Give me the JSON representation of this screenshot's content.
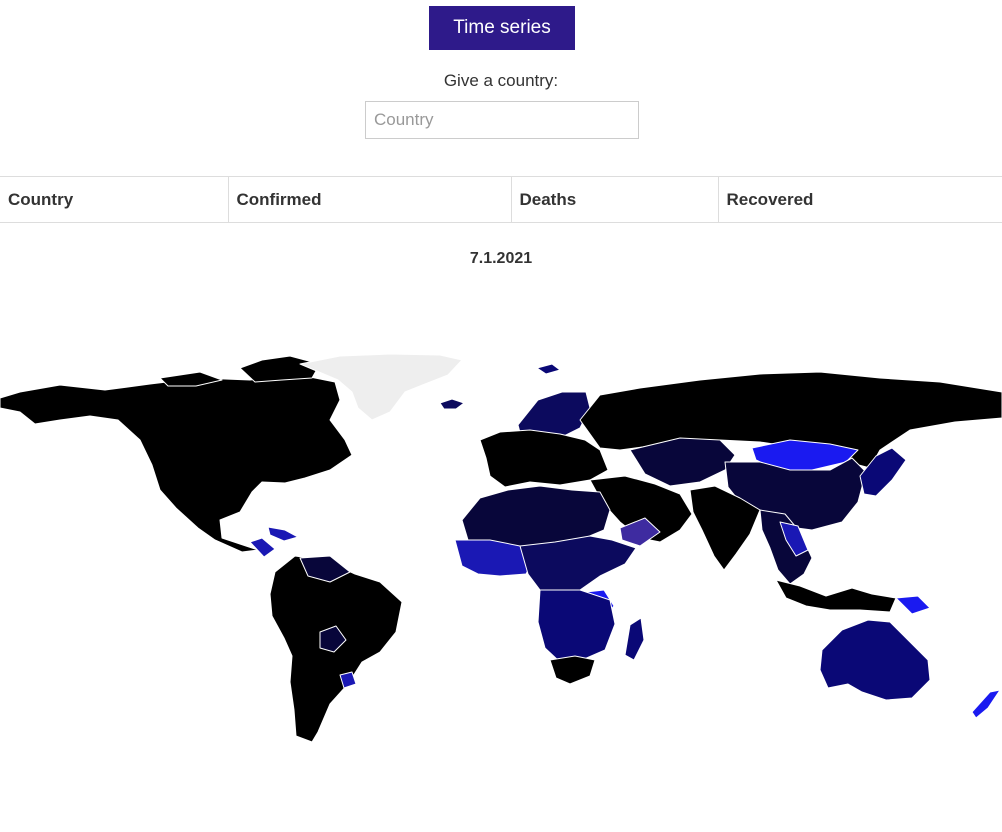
{
  "controls": {
    "time_series_label": "Time series",
    "country_prompt": "Give a country:",
    "country_placeholder": "Country"
  },
  "table": {
    "headers": [
      "Country",
      "Confirmed",
      "Deaths",
      "Recovered"
    ]
  },
  "map": {
    "date": "7.1.2021",
    "colors": {
      "no_data": "#eeeeee",
      "darkest": "#000000",
      "very_dark": "#08063a",
      "dark": "#0c0a5e",
      "navy": "#0a0876",
      "medium": "#1a18b4",
      "bright": "#1a1af0",
      "purple": "#3e2ba0"
    },
    "regions": [
      {
        "name": "north-america",
        "color": "darkest"
      },
      {
        "name": "canada-arctic-islands",
        "color": "darkest"
      },
      {
        "name": "greenland",
        "color": "no_data"
      },
      {
        "name": "iceland",
        "color": "dark"
      },
      {
        "name": "svalbard",
        "color": "navy"
      },
      {
        "name": "caribbean",
        "color": "medium"
      },
      {
        "name": "south-america",
        "color": "darkest"
      },
      {
        "name": "venezuela-guianas",
        "color": "very_dark"
      },
      {
        "name": "paraguay",
        "color": "very_dark"
      },
      {
        "name": "uruguay",
        "color": "medium"
      },
      {
        "name": "scandinavia",
        "color": "dark"
      },
      {
        "name": "europe",
        "color": "darkest"
      },
      {
        "name": "russia",
        "color": "darkest"
      },
      {
        "name": "central-asia",
        "color": "very_dark"
      },
      {
        "name": "mongolia",
        "color": "bright"
      },
      {
        "name": "china",
        "color": "very_dark"
      },
      {
        "name": "middle-east",
        "color": "darkest"
      },
      {
        "name": "yemen-oman",
        "color": "purple"
      },
      {
        "name": "india",
        "color": "darkest"
      },
      {
        "name": "southeast-asia",
        "color": "very_dark"
      },
      {
        "name": "laos-vietnam-cambodia",
        "color": "medium"
      },
      {
        "name": "indonesia",
        "color": "darkest"
      },
      {
        "name": "papua-new-guinea",
        "color": "bright"
      },
      {
        "name": "japan",
        "color": "navy"
      },
      {
        "name": "north-africa",
        "color": "very_dark"
      },
      {
        "name": "west-africa",
        "color": "medium"
      },
      {
        "name": "central-africa",
        "color": "dark"
      },
      {
        "name": "tanzania",
        "color": "bright"
      },
      {
        "name": "southern-africa",
        "color": "navy"
      },
      {
        "name": "south-africa",
        "color": "darkest"
      },
      {
        "name": "madagascar",
        "color": "navy"
      },
      {
        "name": "australia",
        "color": "navy"
      },
      {
        "name": "new-zealand",
        "color": "bright"
      }
    ]
  }
}
